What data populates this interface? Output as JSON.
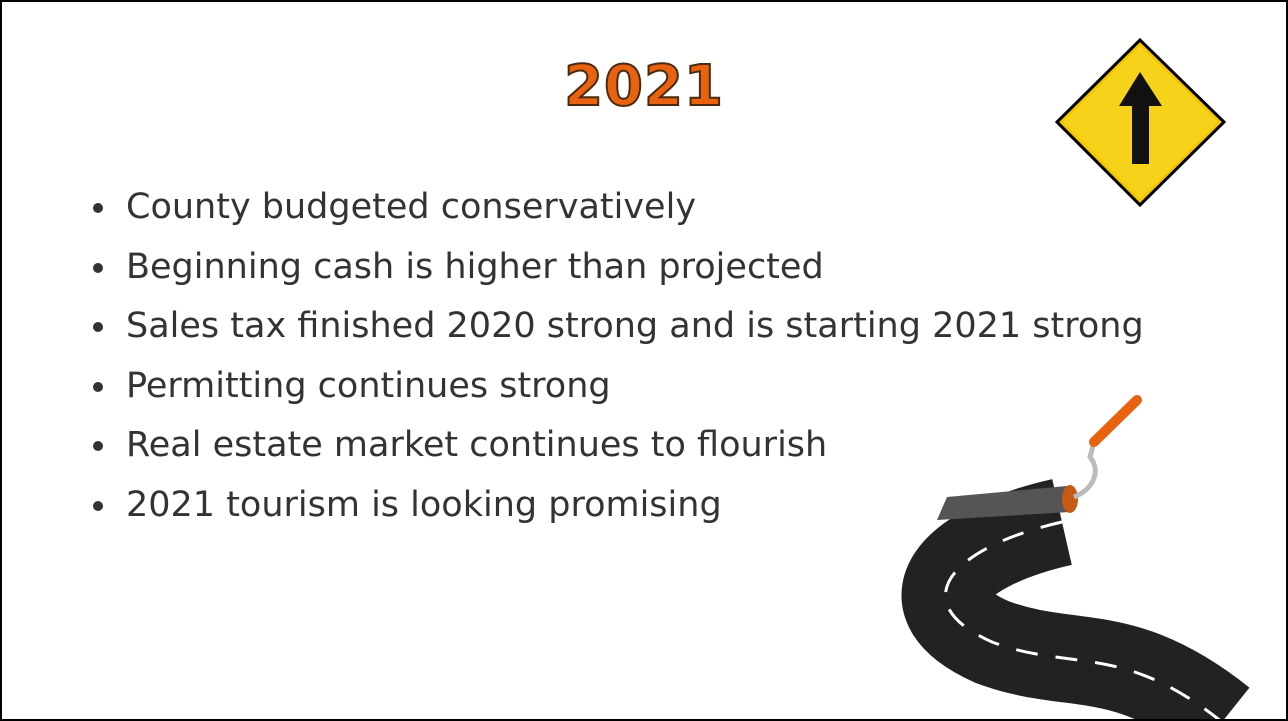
{
  "slide": {
    "title": "2021",
    "bullets": [
      "County budgeted conservatively",
      "Beginning cash is higher than projected",
      "Sales tax finished 2020 strong and is starting 2021 strong",
      "Permitting continues strong",
      "Real estate market continues to flourish",
      "2021 tourism is looking promising"
    ]
  }
}
